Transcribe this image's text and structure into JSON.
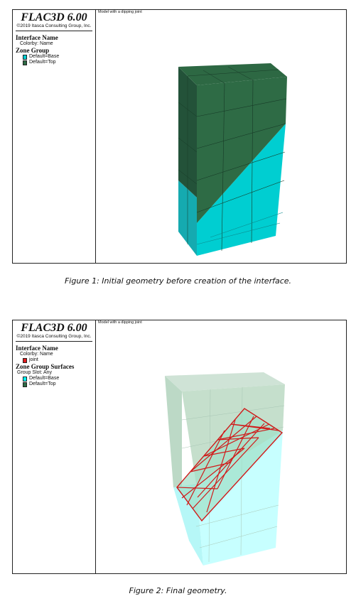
{
  "figure1": {
    "legend": {
      "app_title": "FLAC3D 6.00",
      "copyright": "©2019 Itasca Consulting Group, Inc.",
      "interface_title": "Interface Name",
      "colorby": "Colorby: Name",
      "zone_group_title": "Zone Group",
      "items": [
        {
          "label": "Default=Base",
          "color": "#00ced1"
        },
        {
          "label": "Default=Top",
          "color": "#2e6b45"
        }
      ]
    },
    "view_title": "Model with a dipping joint",
    "caption": "Figure 1: Initial geometry before creation of the interface."
  },
  "figure2": {
    "legend": {
      "app_title": "FLAC3D 6.00",
      "copyright": "©2019 Itasca Consulting Group, Inc.",
      "interface_title": "Interface Name",
      "colorby": "Colorby: Name",
      "interface_item": {
        "label": "joint",
        "color": "#e31a1c"
      },
      "zone_group_title": "Zone Group Surfaces",
      "group_slot": "Group Slot: Any",
      "items": [
        {
          "label": "Default=Base",
          "color": "#00ffff"
        },
        {
          "label": "Default=Top",
          "color": "#2e6b45"
        }
      ]
    },
    "view_title": "Model with a dipping joint",
    "caption": "Figure 2: Final geometry."
  }
}
